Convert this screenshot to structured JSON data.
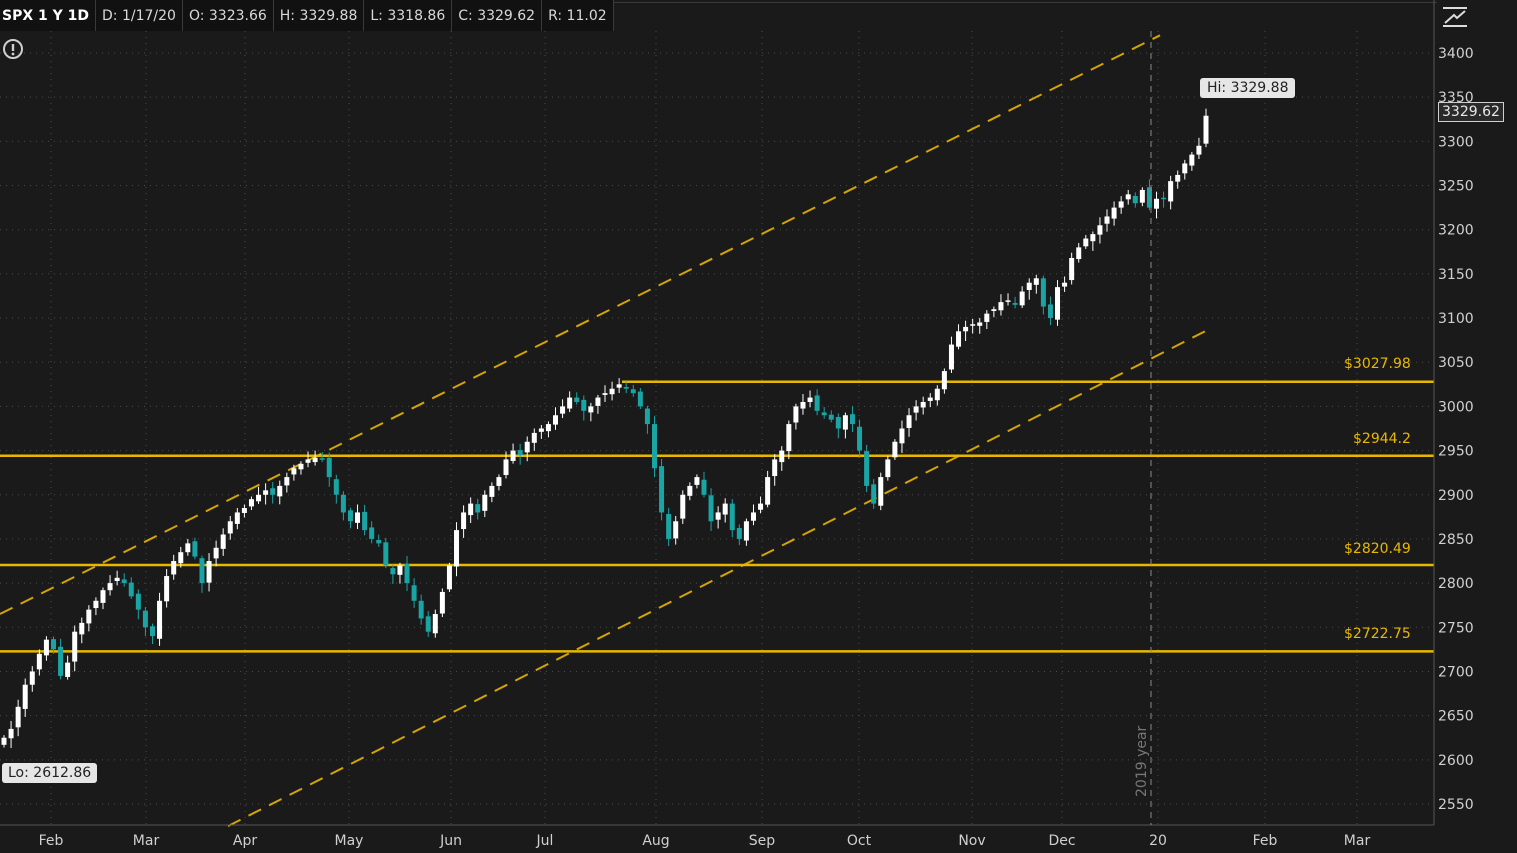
{
  "header": {
    "symbol": "SPX 1 Y 1D",
    "date": "D: 1/17/20",
    "open": "O: 3323.66",
    "high": "H: 3329.88",
    "low": "L: 3318.86",
    "close": "C: 3329.62",
    "range": "R: 11.02"
  },
  "icons": {
    "alert": "alert-circle-icon",
    "scale": "price-scale-icon"
  },
  "colors": {
    "background": "#1a1a1a",
    "up_candle": "#ffffff",
    "down_candle": "#1aa4a4",
    "support_line": "#e8b800",
    "channel_line": "#d4a500",
    "grid": "#4a4a4a",
    "axis_text": "#d0d0d0"
  },
  "labels": {
    "lo": "Lo: 2612.86",
    "hi": "Hi: 3329.88",
    "last": "3329.62",
    "year_marker": "2019 year"
  },
  "chart_data": {
    "type": "candlestick",
    "symbol": "SPX",
    "period": "1 Y",
    "interval": "1D",
    "ylim": [
      2525,
      3425
    ],
    "y_ticks": [
      2550,
      2600,
      2650,
      2700,
      2750,
      2800,
      2850,
      2900,
      2950,
      3000,
      3050,
      3100,
      3150,
      3200,
      3250,
      3300,
      3350,
      3400
    ],
    "x_tick_labels": [
      "Feb",
      "Mar",
      "Apr",
      "May",
      "Jun",
      "Jul",
      "Aug",
      "Sep",
      "Oct",
      "Nov",
      "Dec",
      "20",
      "Feb",
      "Mar"
    ],
    "grid": true,
    "horizontal_levels": [
      {
        "label": "$3027.98",
        "value": 3027.98
      },
      {
        "label": "$2944.2",
        "value": 2944.2
      },
      {
        "label": "$2820.49",
        "value": 2820.49
      },
      {
        "label": "$2722.75",
        "value": 2722.75
      }
    ],
    "channel_lines": [
      {
        "start": [
          2765,
          2825
        ],
        "end": [
          3420,
          3425
        ]
      },
      {
        "start": [
          2525,
          2825
        ],
        "end": [
          3085,
          3425
        ]
      }
    ],
    "year_separator": "2019 year",
    "current": {
      "open": 3323.66,
      "high": 3329.88,
      "low": 3318.86,
      "close": 3329.62
    },
    "extremes": {
      "low": 2612.86,
      "high": 3329.88
    },
    "closes": [
      2625,
      2635,
      2660,
      2685,
      2700,
      2720,
      2736,
      2725,
      2695,
      2710,
      2745,
      2755,
      2770,
      2780,
      2792,
      2800,
      2806,
      2800,
      2785,
      2770,
      2750,
      2740,
      2780,
      2808,
      2825,
      2835,
      2845,
      2830,
      2800,
      2825,
      2840,
      2855,
      2870,
      2880,
      2885,
      2895,
      2900,
      2905,
      2900,
      2910,
      2920,
      2930,
      2935,
      2940,
      2942,
      2940,
      2920,
      2900,
      2880,
      2870,
      2880,
      2860,
      2850,
      2845,
      2820,
      2810,
      2820,
      2800,
      2780,
      2760,
      2745,
      2765,
      2790,
      2820,
      2860,
      2880,
      2890,
      2880,
      2900,
      2910,
      2920,
      2940,
      2950,
      2945,
      2960,
      2970,
      2975,
      2980,
      2990,
      3000,
      3010,
      3005,
      2995,
      3000,
      3010,
      3015,
      3020,
      3025,
      3020,
      3015,
      3000,
      2980,
      2930,
      2880,
      2850,
      2870,
      2900,
      2910,
      2920,
      2900,
      2870,
      2880,
      2890,
      2860,
      2850,
      2870,
      2880,
      2890,
      2920,
      2940,
      2950,
      2980,
      3000,
      3005,
      3010,
      2995,
      2990,
      2985,
      2975,
      2990,
      2980,
      2950,
      2910,
      2890,
      2920,
      2940,
      2960,
      2975,
      2990,
      3000,
      3005,
      3010,
      3020,
      3040,
      3070,
      3085,
      3090,
      3093,
      3095,
      3105,
      3110,
      3118,
      3120,
      3115,
      3130,
      3140,
      3145,
      3113,
      3100,
      3135,
      3140,
      3168,
      3180,
      3190,
      3195,
      3205,
      3215,
      3225,
      3232,
      3240,
      3230,
      3245,
      3225,
      3235,
      3235,
      3255,
      3262,
      3275,
      3285,
      3295,
      3329
    ]
  }
}
